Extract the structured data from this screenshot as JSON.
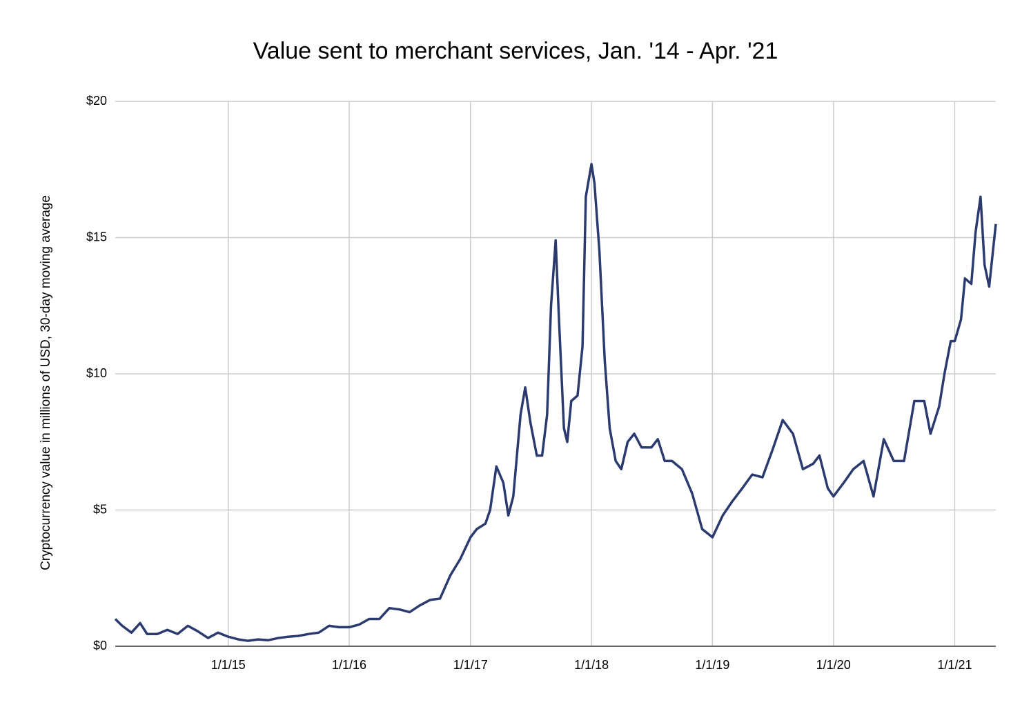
{
  "chart_data": {
    "type": "line",
    "title": "Value sent to merchant services, Jan. '14 - Apr. '21",
    "y_label": "Cryptocurrency value in millions of USD, 30-day moving average",
    "x": [
      "1/25/14",
      "2/15/14",
      "3/15/14",
      "4/10/14",
      "5/1/14",
      "6/1/14",
      "7/1/14",
      "8/1/14",
      "9/1/14",
      "10/1/14",
      "11/1/14",
      "12/1/14",
      "1/1/15",
      "2/1/15",
      "3/1/15",
      "4/1/15",
      "5/1/15",
      "6/1/15",
      "7/1/15",
      "8/1/15",
      "9/1/15",
      "10/1/15",
      "11/1/15",
      "12/1/15",
      "1/1/16",
      "2/1/16",
      "3/1/16",
      "4/1/16",
      "5/1/16",
      "6/1/16",
      "7/1/16",
      "8/1/16",
      "9/1/16",
      "10/1/16",
      "11/1/16",
      "12/1/16",
      "1/1/17",
      "1/20/17",
      "2/15/17",
      "3/1/17",
      "3/20/17",
      "4/10/17",
      "4/25/17",
      "5/10/17",
      "6/1/17",
      "6/15/17",
      "7/1/17",
      "7/20/17",
      "8/5/17",
      "8/20/17",
      "9/1/17",
      "9/15/17",
      "9/25/17",
      "10/10/17",
      "10/20/17",
      "11/1/17",
      "11/20/17",
      "12/5/17",
      "12/15/17",
      "1/1/18",
      "1/10/18",
      "1/25/18",
      "2/10/18",
      "2/25/18",
      "3/15/18",
      "4/1/18",
      "4/20/18",
      "5/10/18",
      "6/1/18",
      "7/1/18",
      "7/20/18",
      "8/10/18",
      "9/1/18",
      "10/1/18",
      "11/1/18",
      "12/1/18",
      "1/1/19",
      "2/1/19",
      "3/1/19",
      "4/1/19",
      "5/1/19",
      "6/1/19",
      "7/1/19",
      "8/1/19",
      "9/1/19",
      "10/1/19",
      "11/1/19",
      "11/20/19",
      "12/15/19",
      "1/1/20",
      "2/1/20",
      "3/1/20",
      "4/1/20",
      "5/1/20",
      "6/1/20",
      "7/1/20",
      "8/1/20",
      "9/1/20",
      "10/1/20",
      "10/20/20",
      "11/15/20",
      "12/1/20",
      "12/20/20",
      "1/1/21",
      "1/20/21",
      "2/1/21",
      "2/20/21",
      "3/5/21",
      "3/20/21",
      "4/1/21",
      "4/15/21",
      "5/5/21"
    ],
    "series": [
      {
        "name": "Value sent to merchant services",
        "color": "#2b3a6f",
        "values": [
          1.0,
          0.75,
          0.5,
          0.85,
          0.45,
          0.45,
          0.6,
          0.45,
          0.75,
          0.55,
          0.3,
          0.5,
          0.35,
          0.25,
          0.2,
          0.25,
          0.22,
          0.3,
          0.35,
          0.38,
          0.45,
          0.5,
          0.75,
          0.7,
          0.7,
          0.8,
          1.0,
          1.0,
          1.4,
          1.35,
          1.25,
          1.5,
          1.7,
          1.75,
          2.6,
          3.2,
          4.0,
          4.3,
          4.5,
          5.0,
          6.6,
          6.0,
          4.8,
          5.5,
          8.5,
          9.5,
          8.2,
          7.0,
          7.0,
          8.5,
          12.5,
          14.9,
          12.0,
          8.0,
          7.5,
          9.0,
          9.2,
          11.0,
          16.5,
          17.7,
          17.0,
          14.5,
          10.5,
          8.0,
          6.8,
          6.5,
          7.5,
          7.8,
          7.3,
          7.3,
          7.6,
          6.8,
          6.8,
          6.5,
          5.6,
          4.3,
          4.0,
          4.8,
          5.3,
          5.8,
          6.3,
          6.2,
          7.2,
          8.3,
          7.8,
          6.5,
          6.7,
          7.0,
          5.8,
          5.5,
          6.0,
          6.5,
          6.8,
          5.5,
          7.6,
          6.8,
          6.8,
          9.0,
          9.0,
          7.8,
          8.8,
          10.0,
          11.2,
          11.2,
          12.0,
          13.5,
          13.3,
          15.2,
          16.5,
          14.0,
          13.2,
          15.5
        ]
      }
    ],
    "xlim": [
      "1/25/14",
      "5/5/21"
    ],
    "xticks": [
      "1/1/15",
      "1/1/16",
      "1/1/17",
      "1/1/18",
      "1/1/19",
      "1/1/20",
      "1/1/21"
    ],
    "ylim": [
      0,
      20
    ],
    "yticks": [
      {
        "value": 0,
        "label": "$0"
      },
      {
        "value": 5,
        "label": "$5"
      },
      {
        "value": 10,
        "label": "$10"
      },
      {
        "value": 15,
        "label": "$15"
      },
      {
        "value": 20,
        "label": "$20"
      }
    ],
    "grid": true
  }
}
